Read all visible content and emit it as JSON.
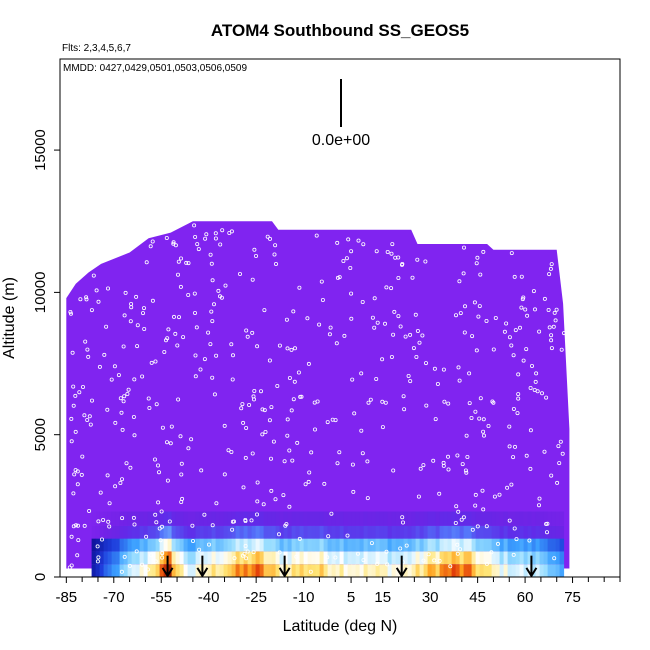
{
  "chart_data": {
    "type": "heatmap",
    "title": "ATOM4 Southbound SS_GEOS5",
    "flights_label": "Flts: 2,3,4,5,6,7",
    "dates_label": "MMDD: 0427,0429,0501,0503,0506,0509",
    "xlabel": "Latitude (deg N)",
    "ylabel": "Altitude (m)",
    "xlim": [
      -87,
      90
    ],
    "ylim": [
      0,
      18200
    ],
    "x_ticks": [
      -85,
      -70,
      -55,
      -40,
      -25,
      -10,
      5,
      15,
      30,
      45,
      60,
      75
    ],
    "y_ticks": [
      0,
      5000,
      10000,
      15000
    ],
    "scale_label": "0.0e+00",
    "background_color": "#8024F0",
    "colormap": [
      "#0a0a8c",
      "#1e3cdc",
      "#3ca0ff",
      "#96dcff",
      "#ffffff",
      "#ffe678",
      "#ffa01e",
      "#e13c0a",
      "#961e00"
    ],
    "curtain_envelope": [
      {
        "lat": -85,
        "top": 9800
      },
      {
        "lat": -82,
        "top": 10300
      },
      {
        "lat": -78,
        "top": 10700
      },
      {
        "lat": -74,
        "top": 11000
      },
      {
        "lat": -65,
        "top": 11400
      },
      {
        "lat": -59,
        "top": 11900
      },
      {
        "lat": -52,
        "top": 12100
      },
      {
        "lat": -45,
        "top": 12500
      },
      {
        "lat": -20,
        "top": 12500
      },
      {
        "lat": -18,
        "top": 12200
      },
      {
        "lat": 24,
        "top": 12200
      },
      {
        "lat": 26,
        "top": 11700
      },
      {
        "lat": 48,
        "top": 11700
      },
      {
        "lat": 50,
        "top": 11500
      },
      {
        "lat": 70,
        "top": 11500
      },
      {
        "lat": 72,
        "top": 9600
      },
      {
        "lat": 74,
        "top": 5200
      }
    ],
    "surface_band": [
      {
        "lat": -77,
        "v": 0.05
      },
      {
        "lat": -70,
        "v": 0.25
      },
      {
        "lat": -64,
        "v": 0.45
      },
      {
        "lat": -60,
        "v": 0.55
      },
      {
        "lat": -57,
        "v": 0.7
      },
      {
        "lat": -53,
        "v": 0.92
      },
      {
        "lat": -50,
        "v": 0.6
      },
      {
        "lat": -46,
        "v": 0.45
      },
      {
        "lat": -42,
        "v": 0.55
      },
      {
        "lat": -36,
        "v": 0.65
      },
      {
        "lat": -30,
        "v": 0.75
      },
      {
        "lat": -26,
        "v": 0.82
      },
      {
        "lat": -22,
        "v": 0.7
      },
      {
        "lat": -18,
        "v": 0.58
      },
      {
        "lat": -14,
        "v": 0.62
      },
      {
        "lat": -9,
        "v": 0.66
      },
      {
        "lat": -4,
        "v": 0.62
      },
      {
        "lat": 2,
        "v": 0.58
      },
      {
        "lat": 8,
        "v": 0.55
      },
      {
        "lat": 14,
        "v": 0.55
      },
      {
        "lat": 20,
        "v": 0.52
      },
      {
        "lat": 26,
        "v": 0.6
      },
      {
        "lat": 31,
        "v": 0.72
      },
      {
        "lat": 36,
        "v": 0.82
      },
      {
        "lat": 41,
        "v": 0.78
      },
      {
        "lat": 46,
        "v": 0.62
      },
      {
        "lat": 52,
        "v": 0.5
      },
      {
        "lat": 58,
        "v": 0.45
      },
      {
        "lat": 64,
        "v": 0.42
      },
      {
        "lat": 68,
        "v": 0.35
      },
      {
        "lat": 72,
        "v": 0.2
      }
    ],
    "profile_arrows_lat": [
      -53,
      -42,
      -16,
      21,
      62
    ]
  }
}
